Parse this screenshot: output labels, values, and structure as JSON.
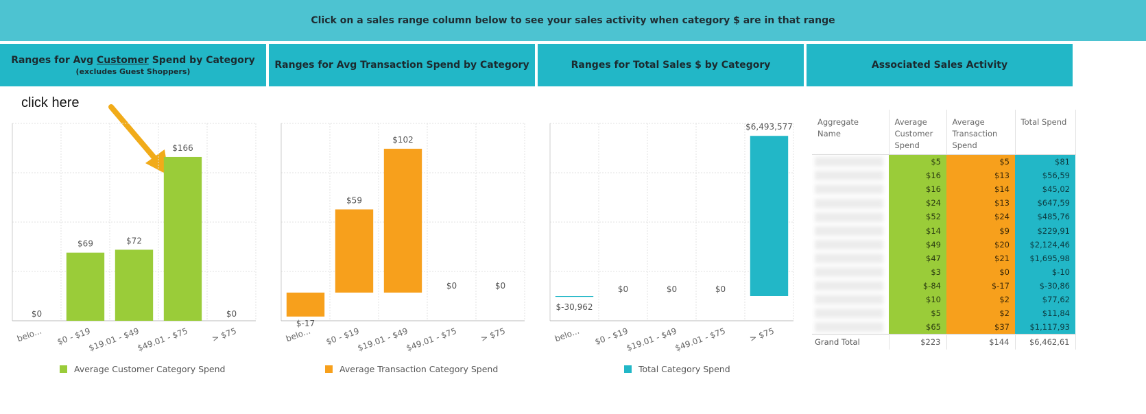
{
  "banner": {
    "text": "Click on a sales range column below to see your sales activity when category $ are in that range"
  },
  "headers": {
    "customer": {
      "prefix": "Ranges for Avg ",
      "underlined": "Customer",
      "suffix": " Spend by Category",
      "subtitle": "(excludes Guest Shoppers)"
    },
    "transaction": {
      "title": "Ranges for Avg Transaction Spend by Category"
    },
    "total": {
      "title": "Ranges for Total  Sales $ by Category"
    },
    "activity": {
      "title": "Associated Sales Activity"
    }
  },
  "annotation": {
    "text": "click here"
  },
  "chart_data": [
    {
      "type": "bar",
      "title": "Ranges for Avg Customer Spend by Category",
      "categories": [
        "belo...",
        "$0 - $19",
        "$19.01 - $49",
        "$49.01 - $75",
        "> $75"
      ],
      "values": [
        0,
        69,
        72,
        166,
        0
      ],
      "labels": [
        "$0",
        "$69",
        "$72",
        "$166",
        "$0"
      ],
      "ylim": [
        0,
        200
      ],
      "legend": "Average Customer Category Spend",
      "color": "#9acc39",
      "grid": true
    },
    {
      "type": "bar",
      "title": "Ranges for Avg Transaction Spend by Category",
      "categories": [
        "belo...",
        "$0 - $19",
        "$19.01 - $49",
        "$49.01 - $75",
        "> $75"
      ],
      "values": [
        -17,
        59,
        102,
        0,
        0
      ],
      "labels": [
        "$-17",
        "$59",
        "$102",
        "$0",
        "$0"
      ],
      "ylim": [
        -20,
        120
      ],
      "legend": "Average Transaction Category Spend",
      "color": "#f7a01c",
      "grid": true
    },
    {
      "type": "bar",
      "title": "Ranges for Total Sales $ by Category",
      "categories": [
        "belo...",
        "$0 - $19",
        "$19.01 - $49",
        "$49.01 - $75",
        "> $75"
      ],
      "values": [
        -30962,
        0,
        0,
        0,
        6493577
      ],
      "labels": [
        "$-30,962",
        "$0",
        "$0",
        "$0",
        "$6,493,577"
      ],
      "ylim": [
        -1000000,
        7000000
      ],
      "legend": "Total Category Spend",
      "color": "#22b7c7",
      "grid": true
    }
  ],
  "table": {
    "columns": [
      "Aggregate Name",
      "Average Customer Spend",
      "Average Transaction Spend",
      "Total Spend"
    ],
    "rows": [
      [
        "",
        "$5",
        "$5",
        "$81"
      ],
      [
        "",
        "$16",
        "$13",
        "$56,59"
      ],
      [
        "",
        "$16",
        "$14",
        "$45,02"
      ],
      [
        "",
        "$24",
        "$13",
        "$647,59"
      ],
      [
        "",
        "$52",
        "$24",
        "$485,76"
      ],
      [
        "",
        "$14",
        "$9",
        "$229,91"
      ],
      [
        "",
        "$49",
        "$20",
        "$2,124,46"
      ],
      [
        "",
        "$47",
        "$21",
        "$1,695,98"
      ],
      [
        "",
        "$3",
        "$0",
        "$-10"
      ],
      [
        "",
        "$-84",
        "$-17",
        "$-30,86"
      ],
      [
        "",
        "$10",
        "$2",
        "$77,62"
      ],
      [
        "",
        "$5",
        "$2",
        "$11,84"
      ],
      [
        "",
        "$65",
        "$37",
        "$1,117,93"
      ]
    ],
    "total": [
      "Grand Total",
      "$223",
      "$144",
      "$6,462,61"
    ]
  }
}
